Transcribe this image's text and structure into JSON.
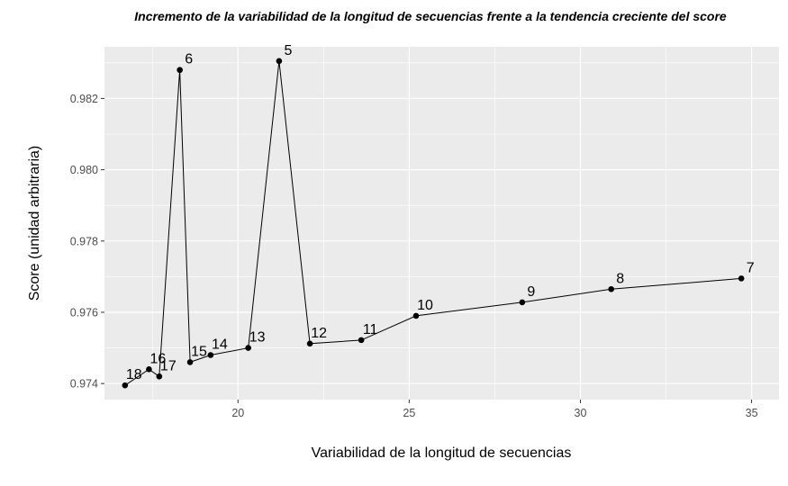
{
  "chart_data": {
    "type": "line",
    "title": "Incremento de la variabilidad de la longitud de secuencias frente a la tendencia creciente del score",
    "xlabel": "Variabilidad de la longitud de secuencias",
    "ylabel": "Score (unidad arbitraria)",
    "xlim": [
      16.1,
      35.8
    ],
    "ylim": [
      0.97355,
      0.98345
    ],
    "x_ticks": [
      20,
      25,
      30,
      35
    ],
    "x_tick_labels": [
      "20",
      "25",
      "30",
      "35"
    ],
    "y_ticks": [
      0.974,
      0.976,
      0.978,
      0.98,
      0.982
    ],
    "y_tick_labels": [
      "0.974",
      "0.976",
      "0.978",
      "0.980",
      "0.982"
    ],
    "grid": true,
    "points": [
      {
        "label": "18",
        "x": 16.7,
        "y": 0.97395
      },
      {
        "label": "16",
        "x": 17.4,
        "y": 0.9744
      },
      {
        "label": "17",
        "x": 17.7,
        "y": 0.9742
      },
      {
        "label": "6",
        "x": 18.3,
        "y": 0.9828
      },
      {
        "label": "15",
        "x": 18.6,
        "y": 0.9746
      },
      {
        "label": "14",
        "x": 19.2,
        "y": 0.9748
      },
      {
        "label": "13",
        "x": 20.3,
        "y": 0.975
      },
      {
        "label": "5",
        "x": 21.2,
        "y": 0.98305
      },
      {
        "label": "12",
        "x": 22.1,
        "y": 0.97512
      },
      {
        "label": "11",
        "x": 23.6,
        "y": 0.97522
      },
      {
        "label": "10",
        "x": 25.2,
        "y": 0.9759
      },
      {
        "label": "9",
        "x": 28.3,
        "y": 0.97628
      },
      {
        "label": "8",
        "x": 30.9,
        "y": 0.97665
      },
      {
        "label": "7",
        "x": 34.7,
        "y": 0.97695
      }
    ]
  }
}
